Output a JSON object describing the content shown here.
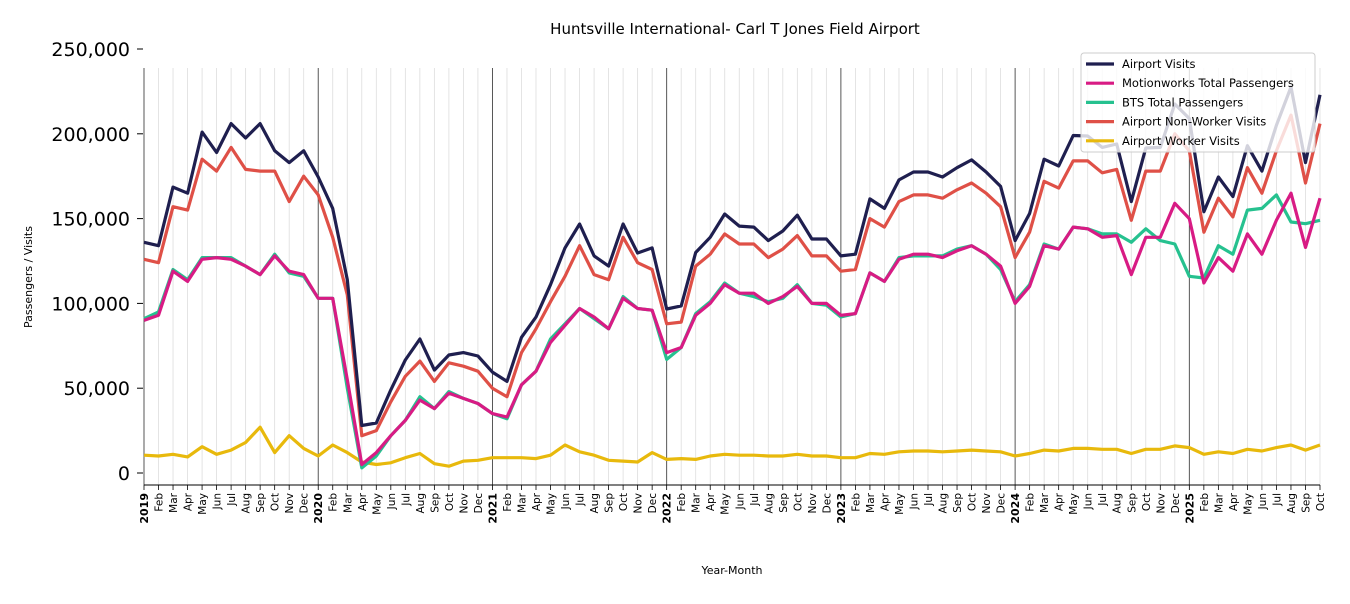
{
  "chart_data": {
    "type": "line",
    "title": "Huntsville International- Carl T Jones Field Airport",
    "xlabel": "Year-Month",
    "ylabel": "Passengers / Visits",
    "ylim": [
      0,
      250000
    ],
    "yticks": [
      0,
      50000,
      100000,
      150000,
      200000,
      250000
    ],
    "ytick_labels": [
      "0",
      "50,000",
      "100,000",
      "150,000",
      "200,000",
      "250,000"
    ],
    "start": "2019-01",
    "end": "2025-10",
    "month_labels": [
      "Feb",
      "Mar",
      "Apr",
      "May",
      "Jun",
      "Jul",
      "Aug",
      "Sep",
      "Oct",
      "Nov",
      "Dec"
    ],
    "legend_position": "top-right",
    "grid": "vertical monthly, darker at year boundaries",
    "series": [
      {
        "name": "Airport Visits",
        "color": "#1f1f4f",
        "values": [
          136,
          134,
          168.6,
          165,
          201,
          189,
          206,
          197.5,
          206,
          190,
          183,
          190,
          174.5,
          156,
          114,
          28,
          29.5,
          49,
          66.6,
          79,
          60.7,
          69.6,
          71,
          69,
          59.5,
          54,
          80,
          92,
          111,
          132.7,
          146.8,
          128,
          122,
          146.8,
          129.7,
          132.7,
          96.7,
          98.5,
          130,
          139,
          152.7,
          145.6,
          145,
          137,
          142.7,
          152,
          138,
          138,
          128,
          129,
          161.6,
          156,
          172.8,
          177.5,
          177.5,
          174.5,
          180,
          184.6,
          177.5,
          169,
          137,
          153,
          185,
          181,
          199,
          198.7,
          192,
          194,
          160,
          191.6,
          192,
          217.6,
          209,
          154,
          174.5,
          163,
          193,
          178,
          205,
          227.6,
          183,
          223
        ]
      },
      {
        "name": "Motionworks Total Passengers",
        "color": "#d81b84",
        "values": [
          90,
          93,
          119,
          113,
          126,
          127,
          126,
          122,
          117,
          128,
          119,
          117,
          103,
          103,
          55,
          5,
          12,
          22,
          31,
          43,
          38,
          47,
          44,
          41,
          35,
          33,
          52,
          60,
          77,
          87,
          97,
          92,
          85,
          103,
          97,
          96,
          71,
          74,
          93,
          100,
          111,
          106,
          106,
          100,
          104,
          110,
          100,
          100,
          93,
          94,
          118,
          113,
          126,
          129,
          129,
          127,
          131,
          134,
          129,
          122,
          100,
          110,
          134,
          132,
          145,
          144,
          139,
          140,
          117,
          139,
          139,
          159,
          150,
          112,
          127,
          119,
          141,
          129,
          149,
          165,
          133,
          162
        ]
      },
      {
        "name": "BTS Total Passengers",
        "color": "#26c18f",
        "values": [
          91,
          95,
          120,
          114,
          127,
          127,
          127,
          122,
          117,
          129,
          118,
          116,
          103,
          103,
          50,
          3,
          10,
          22,
          31,
          45,
          38,
          48,
          44,
          41,
          35,
          32,
          52,
          60,
          79,
          88,
          97,
          91,
          85,
          104,
          97,
          96,
          67,
          74,
          94,
          101,
          112,
          106,
          104,
          101,
          103,
          111,
          100,
          99,
          92,
          94,
          118,
          113,
          127,
          128,
          128,
          128,
          132,
          134,
          129,
          120,
          101,
          111,
          135,
          132,
          145,
          144,
          141,
          141,
          136,
          144,
          137,
          135,
          116,
          115,
          134,
          129,
          155,
          156,
          164,
          148,
          147,
          149
        ]
      },
      {
        "name": "Airport Non-Worker Visits",
        "color": "#df5047",
        "values": [
          126,
          124,
          157,
          155,
          185,
          178,
          192,
          179,
          178,
          178,
          160,
          175,
          164,
          139,
          105,
          22,
          25,
          42,
          57,
          66,
          54,
          65,
          63,
          60,
          50,
          45,
          71,
          85,
          101,
          116,
          134,
          117,
          114,
          139,
          124,
          120,
          88,
          89,
          122,
          129,
          141,
          135,
          135,
          127,
          132,
          140,
          128,
          128,
          119,
          120,
          150,
          145,
          160,
          164,
          164,
          162,
          167,
          171,
          165,
          157,
          127,
          142,
          172,
          168,
          184,
          184,
          177,
          179,
          149,
          178,
          178,
          200,
          190,
          142,
          162,
          151,
          180,
          165,
          190,
          211,
          171,
          206
        ]
      },
      {
        "name": "Airport Worker Visits",
        "color": "#e8b90c",
        "values": [
          10.5,
          10,
          11,
          9.5,
          15.5,
          11,
          13.5,
          18,
          27,
          12,
          22,
          14.5,
          10,
          16.5,
          12,
          6.5,
          5,
          6,
          9,
          11.5,
          5.5,
          4,
          7,
          7.5,
          9,
          9,
          9,
          8.5,
          10.5,
          16.5,
          12.5,
          10.5,
          7.5,
          7,
          6.5,
          12,
          8,
          8.5,
          8,
          10,
          11,
          10.5,
          10.5,
          10,
          10,
          11,
          10,
          10,
          9,
          9,
          11.5,
          11,
          12.5,
          13,
          13,
          12.5,
          13,
          13.5,
          13,
          12.5,
          10,
          11.5,
          13.5,
          13,
          14.5,
          14.5,
          14,
          14,
          11.5,
          14,
          14,
          16,
          15,
          11,
          12.5,
          11.5,
          14,
          13,
          15,
          16.5,
          13.5,
          16.5
        ]
      }
    ],
    "value_unit_note": "values in thousands"
  }
}
